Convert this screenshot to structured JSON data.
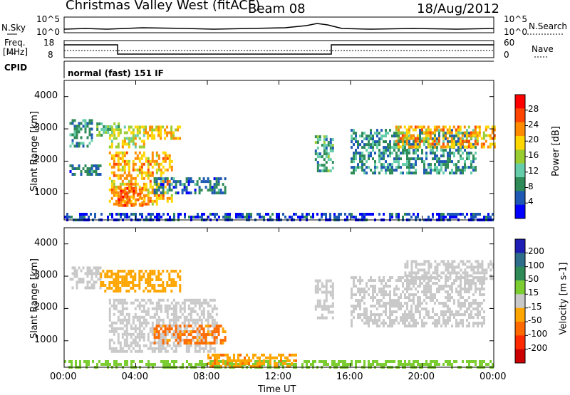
{
  "header": {
    "station": "Christmas Valley West (fitACF)",
    "beam": "Beam 08",
    "date": "18/Aug/2012"
  },
  "aux_panels": {
    "noise": {
      "left_label": "N.Sky",
      "left_top": "10^5",
      "left_bottom": "10^0",
      "right_label": "N.Search",
      "right_top": "10^5",
      "right_bottom": "10^0"
    },
    "freq": {
      "left_label_1": "Freq.",
      "left_label_2": "[MHz]",
      "left_top": "18",
      "left_bottom": "8",
      "right_label": "Nave",
      "right_top": "60",
      "right_bottom": "0"
    },
    "cpid": {
      "label": "CPID",
      "value": "normal (fast) 151 IF"
    }
  },
  "colors": {
    "power_scale": [
      "#0000ff",
      "#1e5ab4",
      "#2e8b57",
      "#66cdaa",
      "#9acd32",
      "#ffd700",
      "#ff8c00",
      "#ff4500",
      "#ff0000"
    ],
    "velocity_scale": [
      "#1e1eb4",
      "#2e6e8b",
      "#2e8b57",
      "#7ccd32",
      "#c8c8c8",
      "#ffa500",
      "#ff6a00",
      "#ff2a00",
      "#cc0000"
    ]
  },
  "chart_data": [
    {
      "type": "heatmap",
      "panel": "power",
      "xlabel": "",
      "ylabel": "Slant Range [km]",
      "ylim": [
        180,
        4500
      ],
      "yticks": [
        "1000",
        "2000",
        "3000",
        "4000"
      ],
      "colorbar": {
        "label": "Power [dB]",
        "ticks": [
          "4",
          "8",
          "12",
          "16",
          "20",
          "24",
          "28"
        ]
      },
      "regions": [
        {
          "t0": 0.3,
          "t1": 1.5,
          "r0": 2500,
          "r1": 3300,
          "v": 10
        },
        {
          "t0": 1.8,
          "t1": 3.0,
          "r0": 2800,
          "r1": 3200,
          "v": 14
        },
        {
          "t0": 2.5,
          "t1": 4.5,
          "r0": 2400,
          "r1": 3100,
          "v": 20
        },
        {
          "t0": 4.5,
          "t1": 6.5,
          "r0": 2700,
          "r1": 3100,
          "v": 22
        },
        {
          "t0": 2.5,
          "t1": 6.0,
          "r0": 700,
          "r1": 2300,
          "v": 24
        },
        {
          "t0": 3.0,
          "t1": 4.5,
          "r0": 600,
          "r1": 1200,
          "v": 28
        },
        {
          "t0": 5.0,
          "t1": 9.0,
          "r0": 1000,
          "r1": 1500,
          "v": 8
        },
        {
          "t0": 0.3,
          "t1": 2.0,
          "r0": 1600,
          "r1": 1900,
          "v": 8
        },
        {
          "t0": 0.0,
          "t1": 24.0,
          "r0": 200,
          "r1": 400,
          "v": 4
        },
        {
          "t0": 14.0,
          "t1": 15.0,
          "r0": 1700,
          "r1": 2800,
          "v": 12
        },
        {
          "t0": 16.0,
          "t1": 23.0,
          "r0": 1600,
          "r1": 3000,
          "v": 10
        },
        {
          "t0": 18.5,
          "t1": 24.0,
          "r0": 2400,
          "r1": 3100,
          "v": 24
        }
      ]
    },
    {
      "type": "heatmap",
      "panel": "velocity",
      "xlabel": "Time UT",
      "ylabel": "Slant Range [km]",
      "ylim": [
        180,
        4500
      ],
      "yticks": [
        "1000",
        "2000",
        "3000",
        "4000"
      ],
      "xticks": [
        "00:00",
        "04:00",
        "08:00",
        "12:00",
        "16:00",
        "20:00",
        "00:00"
      ],
      "xlim": [
        0,
        24
      ],
      "colorbar": {
        "label": "Velocity [m s-1]",
        "ticks": [
          "200",
          "100",
          "50",
          "15",
          "-15",
          "-50",
          "-100",
          "-200"
        ]
      },
      "regions": [
        {
          "t0": 0.3,
          "t1": 2.0,
          "r0": 2600,
          "r1": 3300,
          "v": 0
        },
        {
          "t0": 2.0,
          "t1": 6.5,
          "r0": 2500,
          "r1": 3200,
          "v": -30
        },
        {
          "t0": 2.5,
          "t1": 8.5,
          "r0": 700,
          "r1": 2300,
          "v": 0
        },
        {
          "t0": 5.0,
          "t1": 9.0,
          "r0": 900,
          "r1": 1500,
          "v": -60
        },
        {
          "t0": 0.0,
          "t1": 24.0,
          "r0": 200,
          "r1": 400,
          "v": 30
        },
        {
          "t0": 8.0,
          "t1": 13.0,
          "r0": 200,
          "r1": 600,
          "v": -40
        },
        {
          "t0": 14.0,
          "t1": 15.0,
          "r0": 1700,
          "r1": 2900,
          "v": 0
        },
        {
          "t0": 16.0,
          "t1": 23.5,
          "r0": 1500,
          "r1": 3000,
          "v": 0
        },
        {
          "t0": 19.0,
          "t1": 24.0,
          "r0": 2900,
          "r1": 3500,
          "v": 0
        }
      ]
    }
  ]
}
